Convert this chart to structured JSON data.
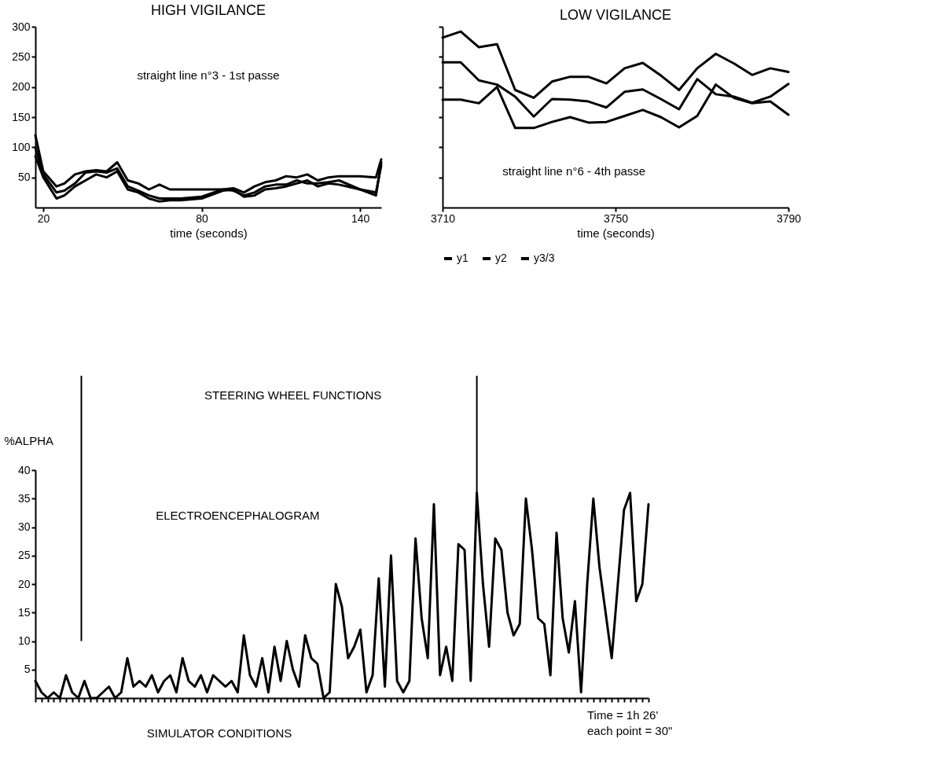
{
  "chart_data": [
    {
      "type": "line",
      "title": "HIGH VIGILANCE",
      "xlabel": "time (seconds)",
      "annotations": [
        "straight line n°3 - 1st passe"
      ],
      "x": [
        17,
        20,
        25,
        28,
        32,
        36,
        40,
        44,
        48,
        52,
        56,
        60,
        64,
        68,
        72,
        80,
        88,
        92,
        96,
        100,
        104,
        108,
        112,
        116,
        120,
        124,
        128,
        132,
        140,
        146,
        148
      ],
      "series": [
        {
          "color": "#000000",
          "values": [
            120,
            60,
            35,
            40,
            55,
            60,
            62,
            60,
            75,
            45,
            40,
            30,
            38,
            30,
            30,
            30,
            30,
            32,
            25,
            35,
            42,
            45,
            52,
            50,
            55,
            45,
            50,
            52,
            52,
            50,
            80
          ]
        },
        {
          "color": "#000000",
          "values": [
            100,
            55,
            25,
            28,
            40,
            58,
            60,
            58,
            65,
            35,
            28,
            20,
            15,
            15,
            15,
            18,
            30,
            28,
            20,
            25,
            35,
            38,
            38,
            45,
            40,
            40,
            42,
            45,
            30,
            25,
            70
          ]
        },
        {
          "color": "#000000",
          "values": [
            85,
            50,
            15,
            20,
            35,
            45,
            55,
            50,
            60,
            30,
            25,
            15,
            10,
            12,
            12,
            15,
            28,
            30,
            18,
            20,
            30,
            32,
            35,
            40,
            45,
            35,
            40,
            38,
            30,
            20,
            75
          ]
        }
      ],
      "xlim": [
        17,
        148
      ],
      "xticks": [
        20,
        80,
        140
      ],
      "ylim": [
        0,
        300
      ],
      "yticks": [
        50,
        100,
        150,
        200,
        250,
        300
      ],
      "grid": false,
      "legend": false,
      "marker": "none",
      "line_style": "solid"
    },
    {
      "type": "line",
      "title": "LOW VIGILANCE",
      "xlabel": "time (seconds)",
      "annotations": [
        "straight line n°6 - 4th passe"
      ],
      "x": [
        3710,
        3714.2,
        3718.4,
        3722.6,
        3726.8,
        3731.1,
        3735.3,
        3739.5,
        3743.7,
        3747.9,
        3752.1,
        3756.3,
        3760.5,
        3764.7,
        3768.9,
        3773.2,
        3777.4,
        3781.6,
        3785.8,
        3790
      ],
      "series": [
        {
          "name": "y1",
          "color": "#000000",
          "values": [
            282,
            292,
            266,
            271,
            195,
            182,
            209,
            217,
            217,
            206,
            231,
            240,
            219,
            195,
            231,
            255,
            239,
            220,
            231,
            225
          ]
        },
        {
          "name": "y2",
          "color": "#000000",
          "values": [
            241,
            241,
            211,
            204,
            184,
            151,
            180,
            179,
            176,
            166,
            192,
            196,
            180,
            163,
            213,
            188,
            184,
            174,
            184,
            205
          ]
        },
        {
          "name": "y3/3",
          "color": "#000000",
          "values": [
            179,
            179,
            173,
            200,
            132,
            132,
            142,
            150,
            141,
            142,
            152,
            162,
            150,
            133,
            152,
            204,
            182,
            173,
            176,
            154
          ]
        }
      ],
      "xlim": [
        3710,
        3790
      ],
      "xticks": [
        {
          "value": 3710,
          "label": "3710"
        },
        {
          "value": 3750,
          "label": "3750"
        },
        {
          "value": 3790,
          "label": "3790"
        }
      ],
      "ylim": [
        0,
        300
      ],
      "yticks": [
        50,
        100,
        150,
        200,
        250,
        300
      ],
      "tick_labels": "x",
      "grid": false,
      "legend": "bottom",
      "marker": "none",
      "line_style": "solid"
    },
    {
      "type": "line",
      "ylabel": "%ALPHA",
      "annotations": [
        "STEERING WHEEL FUNCTIONS",
        "ELECTROENCEPHALOGRAM",
        "SIMULATOR CONDITIONS",
        "Time = 1h 26'",
        "each point = 30\""
      ],
      "categories": [
        null,
        null,
        null,
        null,
        null,
        null,
        null,
        null,
        null,
        null,
        null,
        null,
        null,
        null,
        null,
        null,
        null,
        null,
        null,
        null,
        null,
        null,
        null,
        null,
        null,
        null,
        null,
        null,
        null,
        null,
        null,
        null,
        null,
        null,
        null,
        null,
        null,
        null,
        null,
        null,
        null,
        null,
        null,
        null,
        null,
        null,
        null,
        null,
        null,
        null,
        null,
        null,
        null,
        null,
        null,
        null,
        null,
        null,
        null,
        null,
        null,
        null,
        null,
        null,
        null,
        null,
        null,
        null,
        null,
        null,
        null,
        null,
        null,
        null,
        null,
        null,
        null,
        null,
        null,
        null,
        null,
        null,
        null,
        null,
        null,
        null,
        null,
        null,
        null,
        null,
        null,
        null,
        null,
        null,
        null,
        null,
        null,
        null,
        null,
        null,
        null
      ],
      "series": [
        {
          "color": "#000000",
          "values": [
            3,
            1,
            0,
            1,
            0,
            4,
            1,
            0,
            3,
            0,
            0,
            1,
            2,
            0,
            1,
            7,
            2,
            3,
            2,
            4,
            1,
            3,
            4,
            1,
            7,
            3,
            2,
            4,
            1,
            4,
            3,
            2,
            3,
            1,
            11,
            4,
            2,
            7,
            1,
            9,
            3,
            10,
            5,
            2,
            11,
            7,
            6,
            0,
            1,
            20,
            16,
            7,
            9,
            12,
            1,
            4,
            21,
            2,
            25,
            3,
            1,
            3,
            28,
            14,
            7,
            34,
            4,
            9,
            3,
            27,
            26,
            3,
            36,
            20,
            9,
            28,
            26,
            15,
            11,
            13,
            35,
            26,
            14,
            13,
            4,
            29,
            14,
            8,
            17,
            1,
            20,
            35,
            23,
            15,
            7,
            20,
            33,
            36,
            17,
            20,
            34
          ]
        }
      ],
      "ylim": [
        0,
        40
      ],
      "yticks": [
        5,
        10,
        15,
        20,
        25,
        30,
        35,
        40
      ],
      "tick_labels": "y",
      "grid": false,
      "legend": false,
      "marker": "none",
      "line_style": "solid"
    }
  ]
}
